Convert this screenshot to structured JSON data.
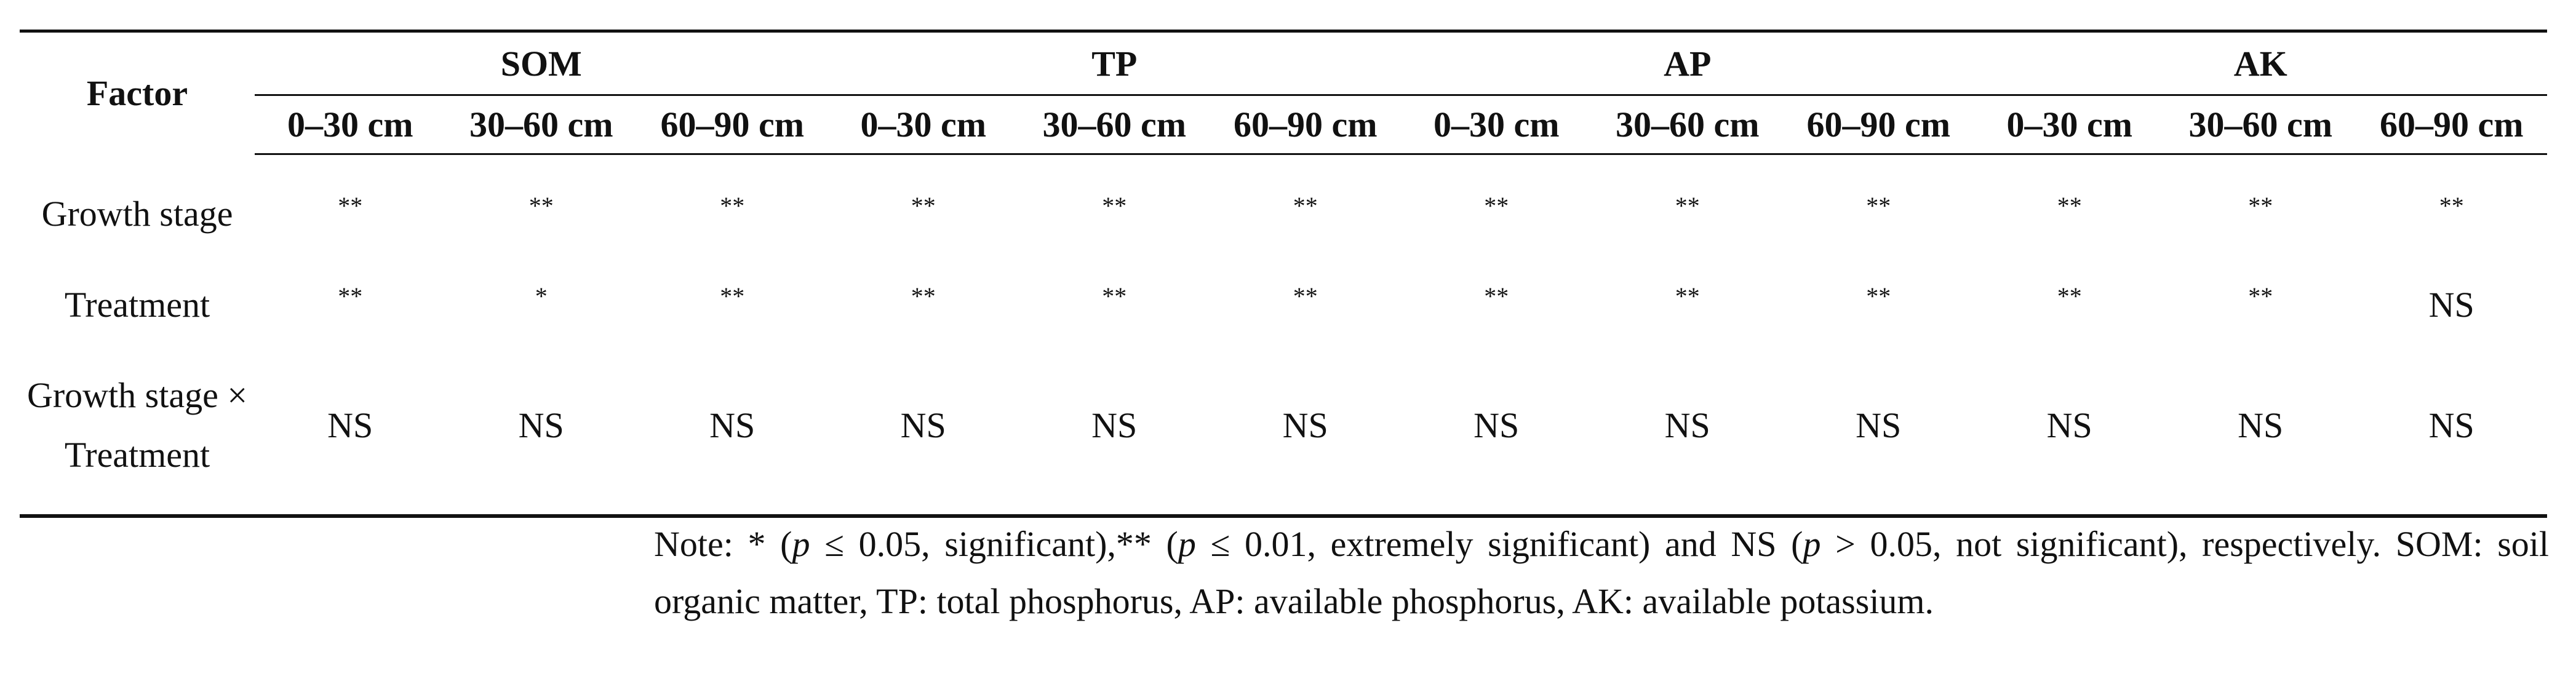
{
  "table": {
    "header": {
      "factor": "Factor",
      "groups": [
        {
          "name": "SOM",
          "columns": [
            "0–30 cm",
            "30–60 cm",
            "60–90 cm"
          ]
        },
        {
          "name": "TP",
          "columns": [
            "0–30 cm",
            "30–60 cm",
            "60–90 cm"
          ]
        },
        {
          "name": "AP",
          "columns": [
            "0–30 cm",
            "30–60 cm",
            "60–90 cm"
          ]
        },
        {
          "name": "AK",
          "columns": [
            "0–30 cm",
            "30–60 cm",
            "60–90 cm"
          ]
        }
      ]
    },
    "rows": [
      {
        "factor": "Growth stage",
        "values": [
          "**",
          "**",
          "**",
          "**",
          "**",
          "**",
          "**",
          "**",
          "**",
          "**",
          "**",
          "**"
        ]
      },
      {
        "factor": "Treatment",
        "values": [
          "**",
          "*",
          "**",
          "**",
          "**",
          "**",
          "**",
          "**",
          "**",
          "**",
          "**",
          "NS"
        ]
      },
      {
        "factor": "Growth stage × Treatment",
        "values": [
          "NS",
          "NS",
          "NS",
          "NS",
          "NS",
          "NS",
          "NS",
          "NS",
          "NS",
          "NS",
          "NS",
          "NS"
        ]
      }
    ]
  },
  "note": [
    "Note: * (",
    "p",
    " ≤ 0.05, significant),** (",
    "p",
    " ≤ 0.01, extremely significant) and NS (",
    "p",
    " > 0.05, not significant), respectively. SOM: soil organic matter, TP: total phosphorus, AP: available phosphorus, AK: available potassium."
  ]
}
